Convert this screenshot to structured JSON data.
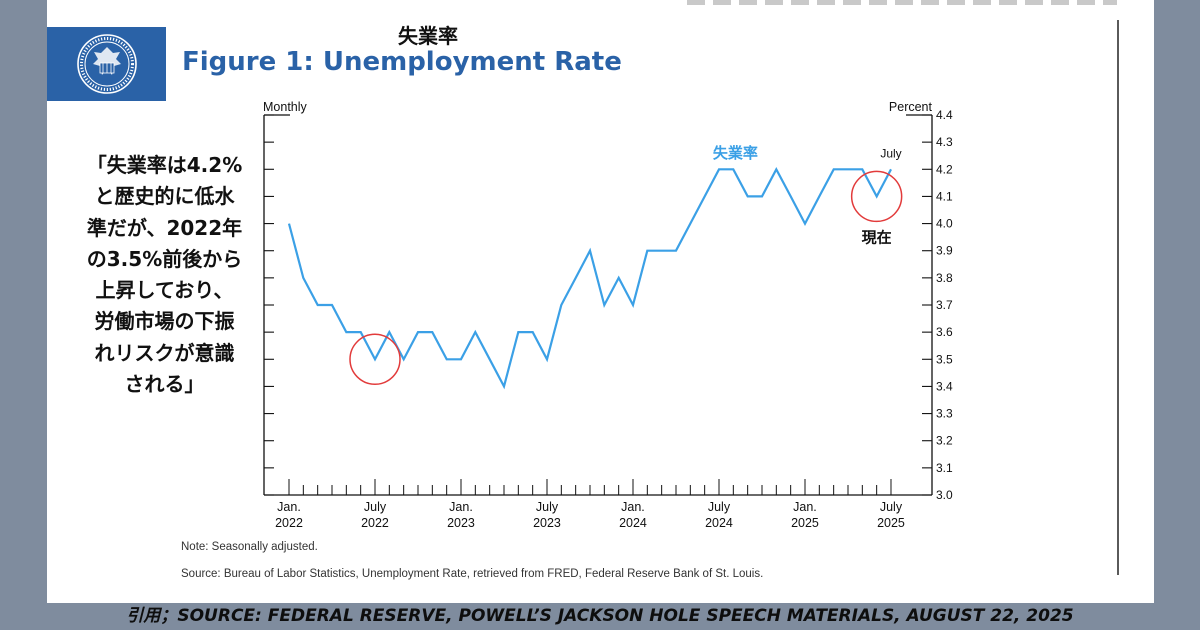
{
  "header": {
    "jp_title": "失業率",
    "figure_title": "Figure 1: Unemployment Rate",
    "seal_icon": "federal-reserve-seal-icon",
    "brand_color": "#2a62a7"
  },
  "callout": {
    "lines": [
      "「失業率は4.2%",
      "と歴史的に低水",
      "準だが、2022年",
      "の3.5%前後から",
      "上昇しており、",
      "労働市場の下振",
      "れリスクが意識",
      "される」"
    ]
  },
  "notes": {
    "note": "Note: Seasonally adjusted.",
    "source": "Source: Bureau of Labor Statistics, Unemployment Rate, retrieved from FRED, Federal Reserve Bank of St. Louis."
  },
  "citation": "引用；SOURCE: FEDERAL RESERVE, POWELL’S JACKSON HOLE SPEECH MATERIALS, AUGUST 22, 2025",
  "chart_data": {
    "type": "line",
    "frequency_label": "Monthly",
    "ylabel": "Percent",
    "ylim": [
      3.0,
      4.4
    ],
    "yticks": [
      "3.0",
      "3.1",
      "3.2",
      "3.3",
      "3.4",
      "3.5",
      "3.6",
      "3.7",
      "3.8",
      "3.9",
      "4.0",
      "4.1",
      "4.2",
      "4.3",
      "4.4"
    ],
    "xtick_labels": [
      {
        "month": "Jan.",
        "year": "2022"
      },
      {
        "month": "July",
        "year": "2022"
      },
      {
        "month": "Jan.",
        "year": "2023"
      },
      {
        "month": "July",
        "year": "2023"
      },
      {
        "month": "Jan.",
        "year": "2024"
      },
      {
        "month": "July",
        "year": "2024"
      },
      {
        "month": "Jan.",
        "year": "2025"
      },
      {
        "month": "July",
        "year": "2025"
      }
    ],
    "series": [
      {
        "name": "失業率",
        "color": "#3ba0e6",
        "start": "2022-01",
        "end": "2025-07",
        "values": [
          4.0,
          3.8,
          3.7,
          3.7,
          3.6,
          3.6,
          3.5,
          3.6,
          3.5,
          3.6,
          3.6,
          3.5,
          3.5,
          3.6,
          3.5,
          3.4,
          3.6,
          3.6,
          3.5,
          3.7,
          3.8,
          3.9,
          3.7,
          3.8,
          3.7,
          3.9,
          3.9,
          3.9,
          4.0,
          4.1,
          4.2,
          4.2,
          4.1,
          4.1,
          4.2,
          4.1,
          4.0,
          4.1,
          4.2,
          4.2,
          4.2,
          4.1,
          4.2
        ]
      }
    ],
    "annotations": [
      {
        "text": "July",
        "date": "2025-07",
        "color": "#111111"
      },
      {
        "text": "現在",
        "date": "2025-06",
        "circle_color": "#e23b3b"
      },
      {
        "text": "",
        "date": "2022-07",
        "circle_color": "#e23b3b"
      }
    ]
  }
}
